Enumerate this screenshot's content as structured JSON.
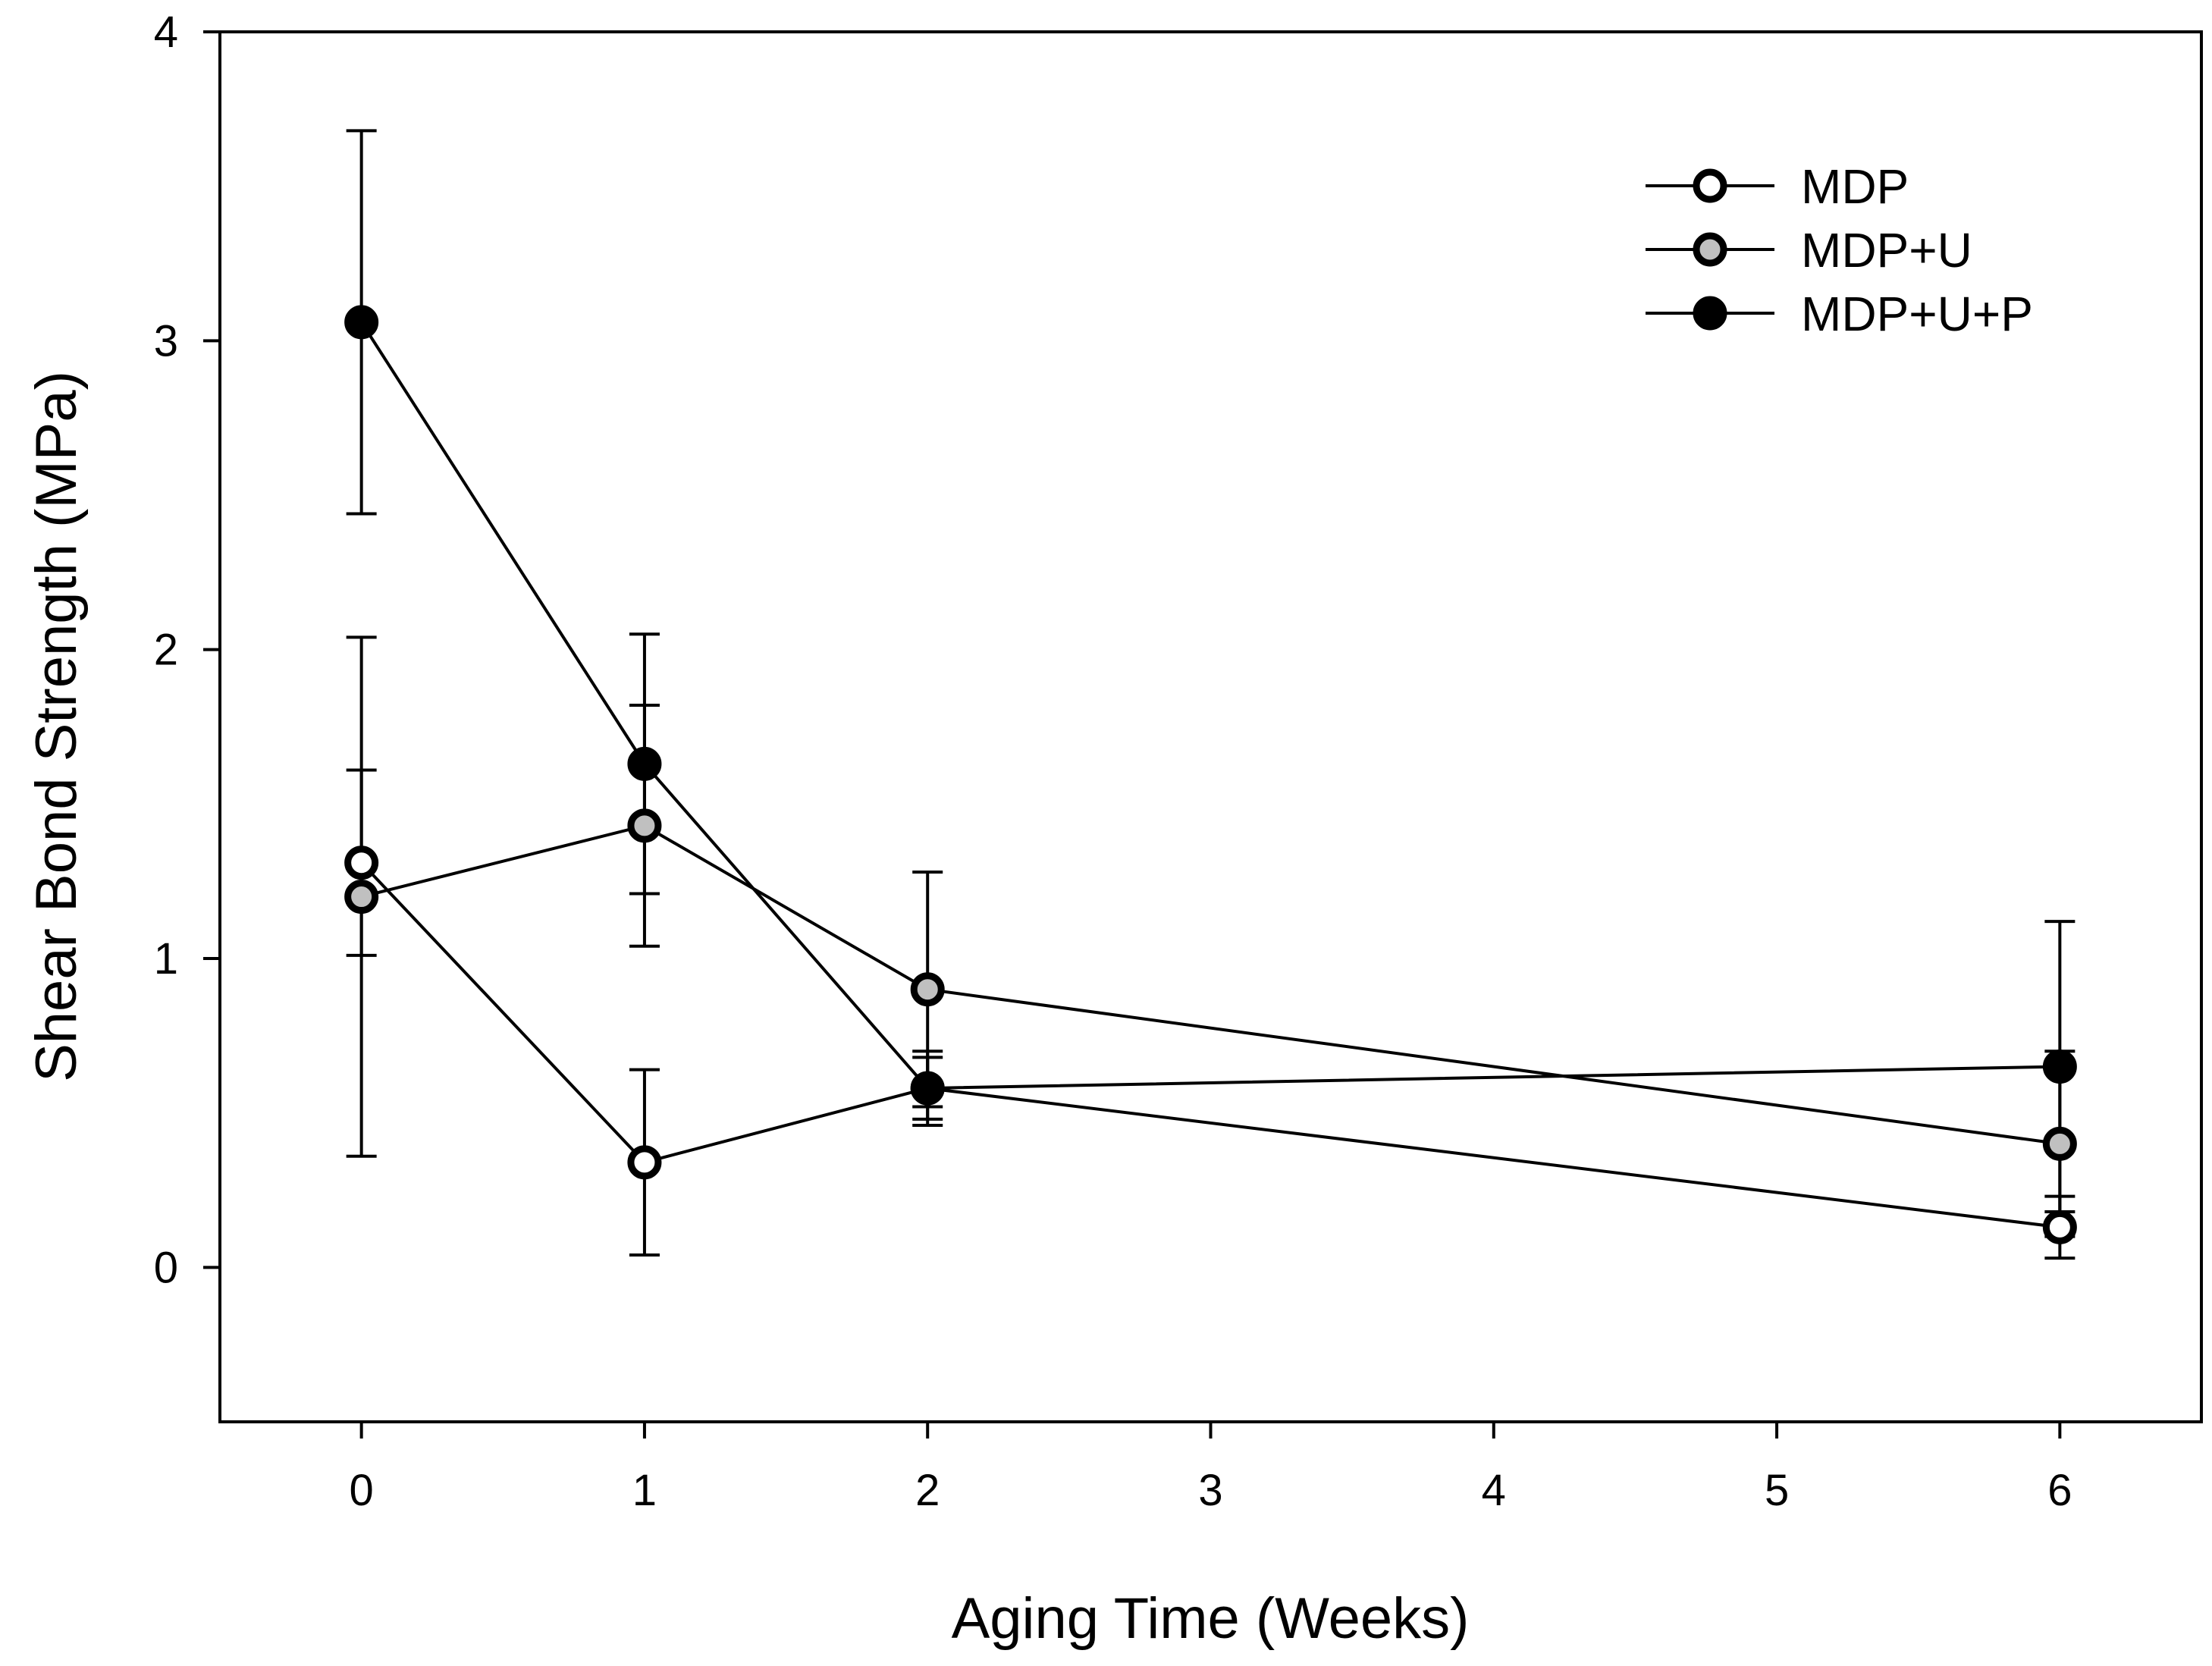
{
  "chart_data": {
    "type": "line",
    "title": "",
    "xlabel": "Aging Time (Weeks)",
    "ylabel": "Shear Bond Strength (MPa)",
    "xlim": [
      -0.5,
      6.5
    ],
    "ylim": [
      -0.5,
      4
    ],
    "xticks": [
      0,
      1,
      2,
      3,
      4,
      5,
      6
    ],
    "yticks": [
      0,
      1,
      2,
      3,
      4
    ],
    "grid": false,
    "legend_position": "top-right",
    "series": [
      {
        "name": "MDP",
        "fill": "#ffffff",
        "x": [
          0,
          1,
          2,
          6
        ],
        "y": [
          1.31,
          0.34,
          0.58,
          0.13
        ],
        "err_upper": [
          1.61,
          0.64,
          0.68,
          0.23
        ],
        "err_lower": [
          1.01,
          0.04,
          0.48,
          0.03
        ]
      },
      {
        "name": "MDP+U",
        "fill": "#c0c0c0",
        "x": [
          0,
          1,
          2,
          6
        ],
        "y": [
          1.2,
          1.43,
          0.9,
          0.4
        ],
        "err_upper": [
          2.04,
          1.82,
          1.28,
          0.7
        ],
        "err_lower": [
          0.36,
          1.04,
          0.52,
          0.1
        ]
      },
      {
        "name": "MDP+U+P",
        "fill": "#000000",
        "x": [
          0,
          1,
          2,
          6
        ],
        "y": [
          3.06,
          1.63,
          0.58,
          0.65
        ],
        "err_upper": [
          3.68,
          2.05,
          0.7,
          1.12
        ],
        "err_lower": [
          2.44,
          1.21,
          0.46,
          0.18
        ]
      }
    ]
  }
}
